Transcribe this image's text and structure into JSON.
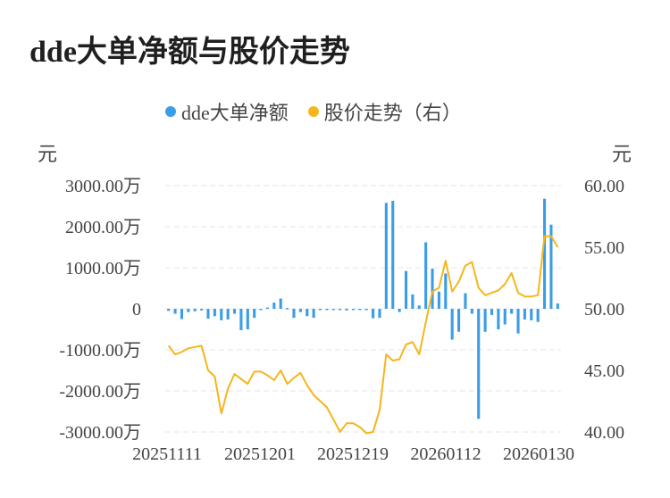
{
  "title": "dde大单净额与股价走势",
  "colors": {
    "bar": "#3a9de6",
    "line": "#f5b51c",
    "grid": "#e6e6e6",
    "text": "#444444"
  },
  "chart_data": {
    "type": "bar+line",
    "title": "dde大单净额与股价走势",
    "legend": [
      "dde大单净额",
      "股价走势（右）"
    ],
    "legend_position": "top-center",
    "left_unit": "元",
    "right_unit": "元",
    "left_ticks": [
      "3000.00万",
      "2000.00万",
      "1000.00万",
      "0",
      "-1000.00万",
      "-2000.00万",
      "-3000.00万"
    ],
    "right_ticks": [
      "60.00",
      "55.00",
      "50.00",
      "45.00",
      "40.00"
    ],
    "x_tick_labels": [
      "20251111",
      "20251201",
      "20251219",
      "20260112",
      "20260130"
    ],
    "left_ylim": [
      -3000,
      3000
    ],
    "right_ylim": [
      40,
      60
    ],
    "grid": true,
    "series": [
      {
        "name": "dde大单净额",
        "axis": "left",
        "type": "bar",
        "values": [
          -50,
          -120,
          -250,
          -80,
          -60,
          -40,
          -240,
          -180,
          -280,
          -260,
          -120,
          -520,
          -500,
          -220,
          -30,
          30,
          150,
          250,
          20,
          -220,
          -80,
          -180,
          -220,
          -30,
          -30,
          -30,
          -20,
          -40,
          -30,
          -20,
          -20,
          -230,
          -220,
          2580,
          2630,
          -80,
          920,
          350,
          80,
          1620,
          980,
          420,
          860,
          -750,
          -560,
          380,
          -120,
          -2680,
          -560,
          -150,
          -500,
          -380,
          -120,
          -600,
          -260,
          -280,
          -320,
          2680,
          2050,
          130
        ]
      },
      {
        "name": "股价走势（右）",
        "axis": "right",
        "type": "line",
        "values": [
          47.0,
          46.3,
          46.5,
          46.8,
          46.9,
          47.0,
          45.0,
          44.5,
          41.5,
          43.5,
          44.7,
          44.3,
          43.9,
          44.9,
          44.9,
          44.6,
          44.2,
          45.0,
          43.9,
          44.4,
          44.8,
          43.8,
          43.0,
          42.5,
          42.0,
          41.0,
          40.0,
          40.7,
          40.7,
          40.4,
          39.9,
          40.0,
          41.8,
          46.3,
          45.8,
          45.9,
          47.1,
          47.3,
          46.3,
          48.9,
          51.4,
          51.7,
          53.9,
          51.4,
          52.2,
          53.5,
          53.8,
          51.7,
          51.1,
          51.3,
          51.5,
          52.0,
          52.9,
          51.3,
          51.0,
          51.0,
          51.1,
          55.9,
          55.9,
          55.0
        ]
      }
    ]
  }
}
